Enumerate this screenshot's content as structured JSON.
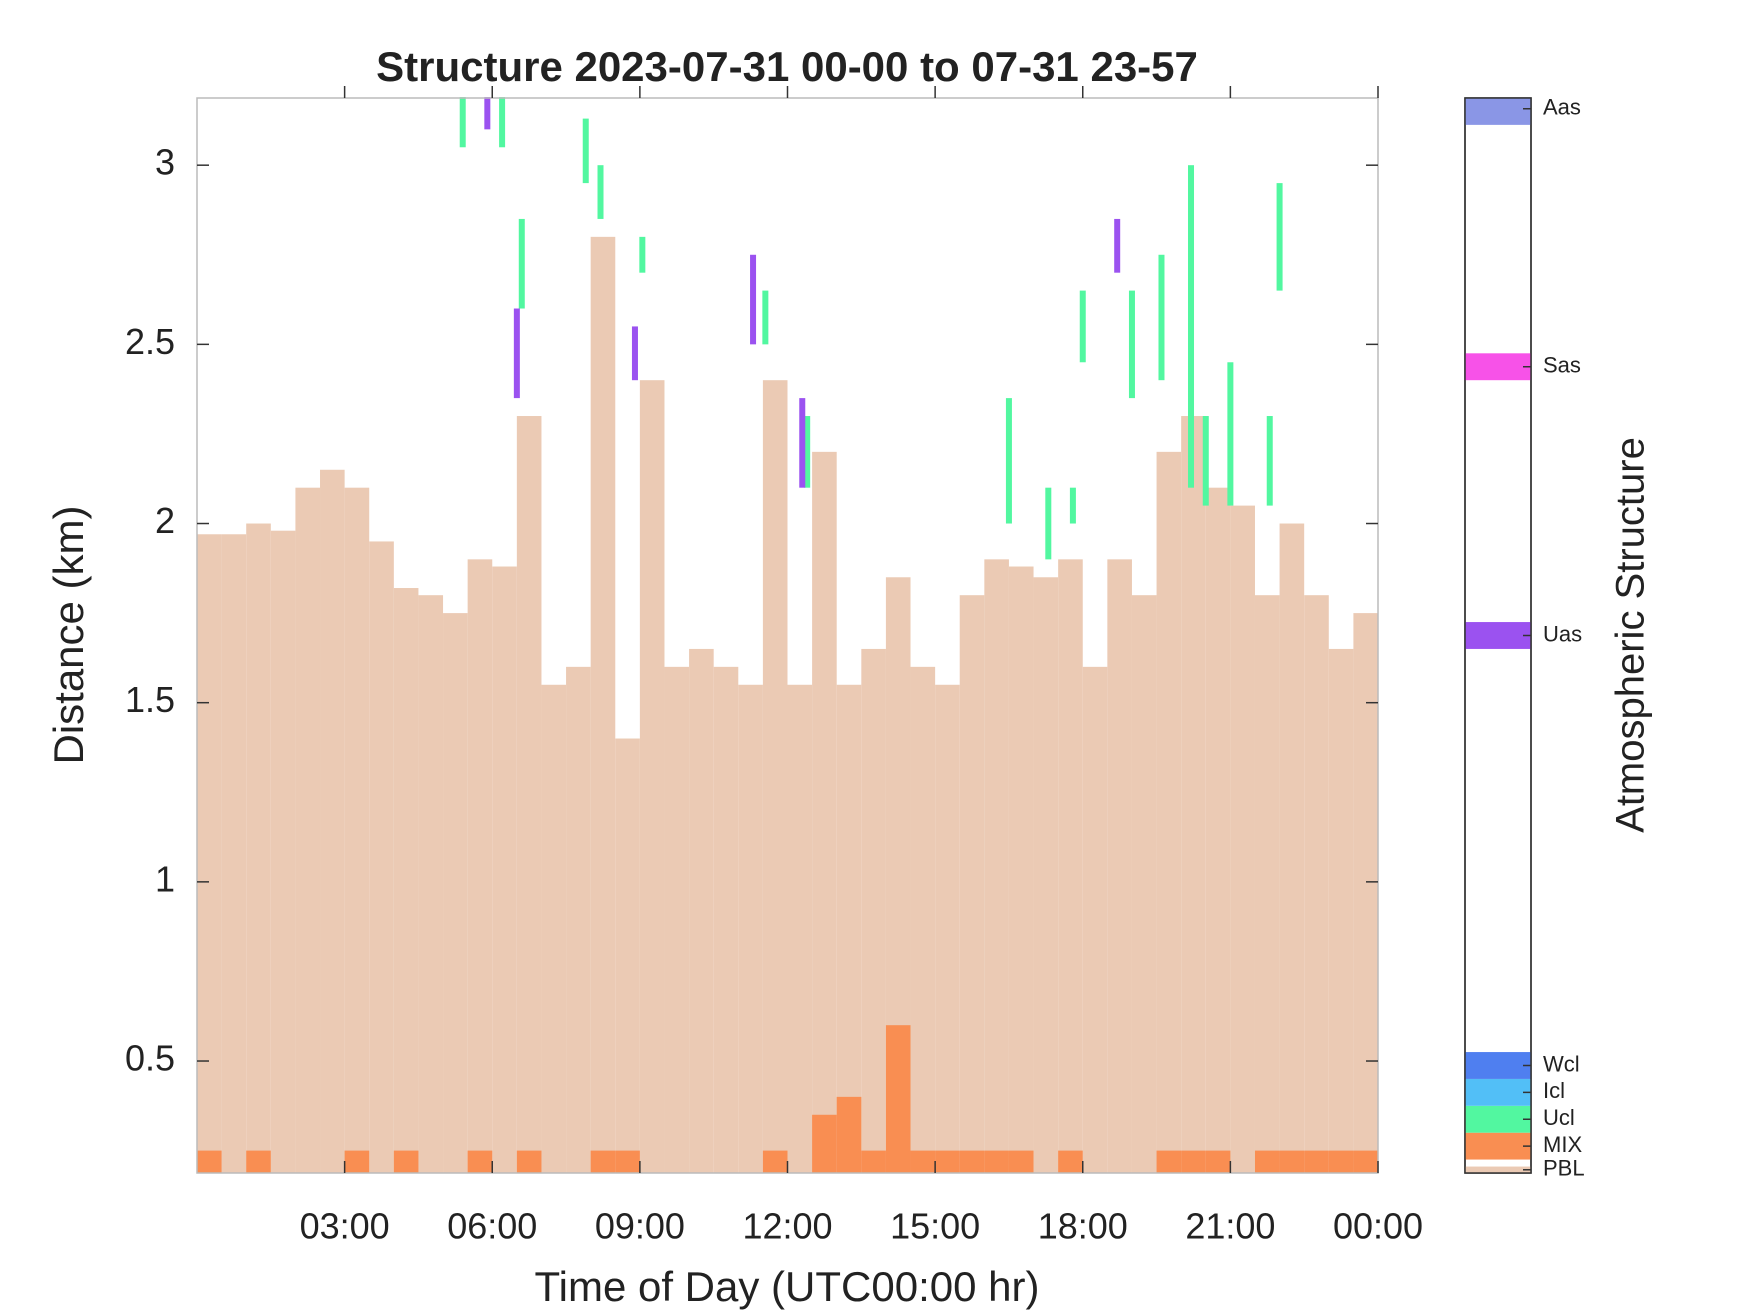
{
  "chart_data": {
    "type": "structure",
    "title": "Structure 2023-07-31 00-00 to 07-31 23-57",
    "x_label": "Time of Day (UTC00:00 hr)",
    "y_label": "Distance (km)",
    "colorbar_label": "Atmospheric Structure",
    "xlim": [
      0,
      24
    ],
    "xticks": [
      {
        "value": 3,
        "label": "03:00"
      },
      {
        "value": 6,
        "label": "06:00"
      },
      {
        "value": 9,
        "label": "09:00"
      },
      {
        "value": 12,
        "label": "12:00"
      },
      {
        "value": 15,
        "label": "15:00"
      },
      {
        "value": 18,
        "label": "18:00"
      },
      {
        "value": 21,
        "label": "21:00"
      },
      {
        "value": 24,
        "label": "00:00"
      }
    ],
    "ylim": [
      0.1875,
      3.1875
    ],
    "yticks": [
      0.5,
      1,
      1.5,
      2,
      2.5,
      3
    ],
    "series": [
      {
        "name": "PBL",
        "color": "#ebcab4",
        "x": [
          0,
          0.5,
          1,
          1.5,
          2,
          2.5,
          3,
          3.5,
          4,
          4.5,
          5,
          5.5,
          6,
          6.5,
          7,
          7.5,
          8,
          8.5,
          9,
          9.5,
          10,
          10.5,
          11,
          11.5,
          12,
          12.5,
          13,
          13.5,
          14,
          14.5,
          15,
          15.5,
          16,
          16.5,
          17,
          17.5,
          18,
          18.5,
          19,
          19.5,
          20,
          20.5,
          21,
          21.5,
          22,
          22.5,
          23,
          23.5
        ],
        "values": [
          1.97,
          1.97,
          2.0,
          1.98,
          2.1,
          2.15,
          2.1,
          1.95,
          1.82,
          1.8,
          1.75,
          1.9,
          1.88,
          2.3,
          1.55,
          1.6,
          2.8,
          1.4,
          2.4,
          1.6,
          1.65,
          1.6,
          1.55,
          2.4,
          1.55,
          2.2,
          1.55,
          1.65,
          1.85,
          1.6,
          1.55,
          1.8,
          1.9,
          1.88,
          1.85,
          1.9,
          1.6,
          1.9,
          1.8,
          2.2,
          2.3,
          2.1,
          2.05,
          1.8,
          2.0,
          1.8,
          1.65,
          1.75
        ]
      },
      {
        "name": "MIX",
        "color": "#f98e52",
        "x": [
          0,
          1,
          3,
          4,
          5.5,
          6.5,
          8,
          8.5,
          11.5,
          12.5,
          13,
          13.5,
          14,
          14.5,
          15,
          15.5,
          16,
          16.5,
          17.5,
          19.5,
          20,
          20.5,
          21.5,
          22,
          22.5,
          23,
          23.5
        ],
        "values": [
          0.25,
          0.25,
          0.25,
          0.25,
          0.25,
          0.25,
          0.25,
          0.25,
          0.25,
          0.35,
          0.4,
          0.25,
          0.6,
          0.25,
          0.25,
          0.25,
          0.25,
          0.25,
          0.25,
          0.25,
          0.25,
          0.25,
          0.25,
          0.25,
          0.25,
          0.25,
          0.25
        ]
      },
      {
        "name": "Ucl",
        "color": "#52f7a0",
        "x": [
          5.4,
          6.2,
          6.6,
          7.9,
          8.2,
          9.05,
          11.55,
          12.4,
          16.5,
          17.3,
          17.8,
          18.0,
          19.0,
          19.6,
          20.2,
          20.5,
          21.0,
          21.8,
          22.0
        ],
        "bases": [
          3.05,
          3.05,
          2.6,
          2.95,
          2.85,
          2.7,
          2.5,
          2.1,
          2.0,
          1.9,
          2.0,
          2.45,
          2.35,
          2.4,
          2.1,
          2.05,
          2.05,
          2.05,
          2.65
        ],
        "tops": [
          3.19,
          3.19,
          2.85,
          3.13,
          3.0,
          2.8,
          2.65,
          2.3,
          2.35,
          2.1,
          2.1,
          2.65,
          2.65,
          2.75,
          3.0,
          2.3,
          2.45,
          2.3,
          2.95
        ]
      },
      {
        "name": "Icl",
        "color": "#52bff7",
        "x": [],
        "bases": [],
        "tops": []
      },
      {
        "name": "Wcl",
        "color": "#4f7ff0",
        "x": [],
        "bases": [],
        "tops": []
      },
      {
        "name": "Uas",
        "color": "#9b52f0",
        "x": [
          5.9,
          6.5,
          8.9,
          11.3,
          12.3,
          18.7
        ],
        "bases": [
          3.1,
          2.35,
          2.4,
          2.5,
          2.1,
          2.7
        ],
        "tops": [
          3.19,
          2.6,
          2.55,
          2.75,
          2.35,
          2.85
        ]
      },
      {
        "name": "Sas",
        "color": "#f752e8",
        "x": [],
        "bases": [],
        "tops": []
      },
      {
        "name": "Aas",
        "color": "#8a96e6",
        "x": [],
        "bases": [],
        "tops": []
      }
    ]
  }
}
